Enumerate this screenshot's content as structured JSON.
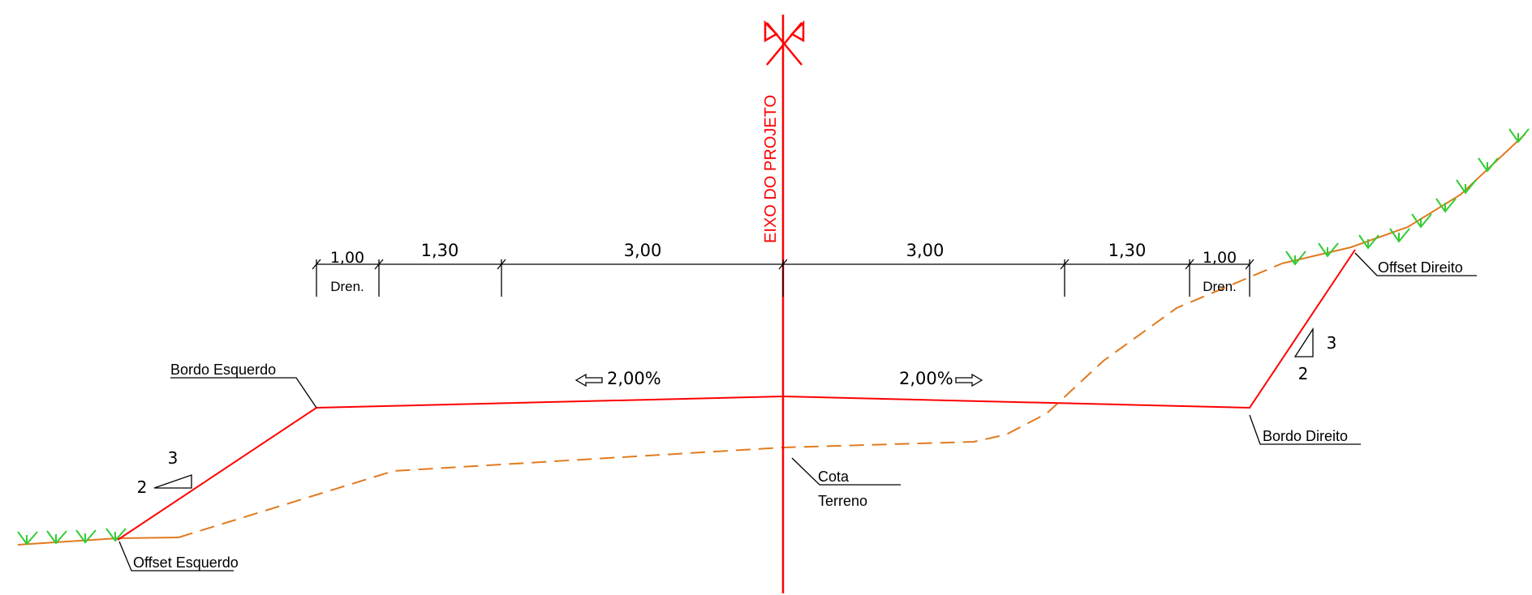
{
  "axis": {
    "label": "EIXO DO PROJETO"
  },
  "dimensions": {
    "left": [
      "1,00",
      "1,30",
      "3,00"
    ],
    "right": [
      "3,00",
      "1,30",
      "1,00"
    ],
    "drain_label": "Dren."
  },
  "slopes": {
    "left": "2,00%",
    "right": "2,00%"
  },
  "labels": {
    "bordo_esquerdo": "Bordo Esquerdo",
    "bordo_direito": "Bordo Direito",
    "offset_esquerdo": "Offset Esquerdo",
    "offset_direito": "Offset Direito",
    "cota": "Cota",
    "terreno": "Terreno"
  },
  "cut_slope_left": {
    "v": "3",
    "h": "2"
  },
  "cut_slope_right": {
    "v": "3",
    "h": "2"
  },
  "colors": {
    "design": "#ff0000",
    "terrain": "#e07a1f",
    "grass": "#33cc33",
    "annotation": "#000000"
  }
}
